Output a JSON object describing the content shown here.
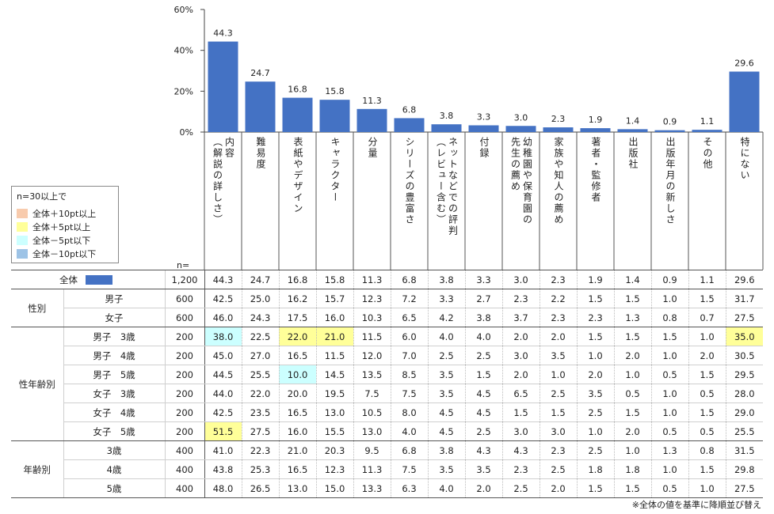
{
  "chart_data": {
    "type": "bar",
    "y_ticks": [
      "60%",
      "40%",
      "20%",
      "0%"
    ],
    "ylim": [
      0,
      60
    ],
    "bar_color": "#4472c4",
    "categories": [
      "内容\n（解説の詳しさ）",
      "難易度",
      "表紙やデザイン",
      "キャラクター",
      "分量",
      "シリーズの豊富さ",
      "ネットなどでの評判\n（レビュー含む）",
      "付録",
      "幼稚園や保育園の\n先生の薦め",
      "家族や知人の薦め",
      "著者・監修者",
      "出版社",
      "出版年月の新しさ",
      "その他",
      "特にない"
    ],
    "values": [
      44.3,
      24.7,
      16.8,
      15.8,
      11.3,
      6.8,
      3.8,
      3.3,
      3.0,
      2.3,
      1.9,
      1.4,
      0.9,
      1.1,
      29.6
    ],
    "value_labels": [
      "44.3",
      "24.7",
      "16.8",
      "15.8",
      "11.3",
      "6.8",
      "3.8",
      "3.3",
      "3.0",
      "2.3",
      "1.9",
      "1.4",
      "0.9",
      "1.1",
      "29.6"
    ]
  },
  "legend": {
    "title": "n=30以上で",
    "items": [
      {
        "label": "全体＋10pt以上",
        "color": "#f8cbad"
      },
      {
        "label": "全体＋5pt以上",
        "color": "#ffff99"
      },
      {
        "label": "全体－5pt以下",
        "color": "#ccffff"
      },
      {
        "label": "全体－10pt以下",
        "color": "#9dc3e6"
      }
    ]
  },
  "n_header": "n=",
  "table": {
    "total": {
      "label": "全体",
      "n": "1,200",
      "values": [
        "44.3",
        "24.7",
        "16.8",
        "15.8",
        "11.3",
        "6.8",
        "3.8",
        "3.3",
        "3.0",
        "2.3",
        "1.9",
        "1.4",
        "0.9",
        "1.1",
        "29.6"
      ]
    },
    "groups": [
      {
        "name": "性別",
        "rows": [
          {
            "label": "男子",
            "n": "600",
            "values": [
              "42.5",
              "25.0",
              "16.2",
              "15.7",
              "12.3",
              "7.2",
              "3.3",
              "2.7",
              "2.3",
              "2.2",
              "1.5",
              "1.5",
              "1.0",
              "1.5",
              "31.7"
            ],
            "hl": {}
          },
          {
            "label": "女子",
            "n": "600",
            "values": [
              "46.0",
              "24.3",
              "17.5",
              "16.0",
              "10.3",
              "6.5",
              "4.2",
              "3.8",
              "3.7",
              "2.3",
              "2.3",
              "1.3",
              "0.8",
              "0.7",
              "27.5"
            ],
            "hl": {}
          }
        ]
      },
      {
        "name": "性年齢別",
        "rows": [
          {
            "label": "男子　3歳",
            "n": "200",
            "values": [
              "38.0",
              "22.5",
              "22.0",
              "21.0",
              "11.5",
              "6.0",
              "4.0",
              "4.0",
              "2.0",
              "2.0",
              "1.5",
              "1.5",
              "1.5",
              "1.0",
              "35.0"
            ],
            "hl": {
              "0": "#ccffff",
              "2": "#ffff99",
              "3": "#ffff99",
              "14": "#ffff99"
            }
          },
          {
            "label": "男子　4歳",
            "n": "200",
            "values": [
              "45.0",
              "27.0",
              "16.5",
              "11.5",
              "12.0",
              "7.0",
              "2.5",
              "2.5",
              "3.0",
              "3.5",
              "1.0",
              "2.0",
              "1.0",
              "2.0",
              "30.5"
            ],
            "hl": {}
          },
          {
            "label": "男子　5歳",
            "n": "200",
            "values": [
              "44.5",
              "25.5",
              "10.0",
              "14.5",
              "13.5",
              "8.5",
              "3.5",
              "1.5",
              "2.0",
              "1.0",
              "2.0",
              "1.0",
              "0.5",
              "1.5",
              "29.5"
            ],
            "hl": {
              "2": "#ccffff"
            }
          },
          {
            "label": "女子　3歳",
            "n": "200",
            "values": [
              "44.0",
              "22.0",
              "20.0",
              "19.5",
              "7.5",
              "7.5",
              "3.5",
              "4.5",
              "6.5",
              "2.5",
              "3.5",
              "0.5",
              "1.0",
              "0.5",
              "28.0"
            ],
            "hl": {}
          },
          {
            "label": "女子　4歳",
            "n": "200",
            "values": [
              "42.5",
              "23.5",
              "16.5",
              "13.0",
              "10.5",
              "8.0",
              "4.5",
              "4.5",
              "1.5",
              "1.5",
              "2.5",
              "1.5",
              "1.0",
              "1.5",
              "29.0"
            ],
            "hl": {}
          },
          {
            "label": "女子　5歳",
            "n": "200",
            "values": [
              "51.5",
              "27.5",
              "16.0",
              "15.5",
              "13.0",
              "4.0",
              "4.5",
              "2.5",
              "3.0",
              "3.0",
              "1.0",
              "2.0",
              "0.5",
              "0.5",
              "25.5"
            ],
            "hl": {
              "0": "#ffff99"
            }
          }
        ]
      },
      {
        "name": "年齢別",
        "rows": [
          {
            "label": "3歳",
            "n": "400",
            "values": [
              "41.0",
              "22.3",
              "21.0",
              "20.3",
              "9.5",
              "6.8",
              "3.8",
              "4.3",
              "4.3",
              "2.3",
              "2.5",
              "1.0",
              "1.3",
              "0.8",
              "31.5"
            ],
            "hl": {}
          },
          {
            "label": "4歳",
            "n": "400",
            "values": [
              "43.8",
              "25.3",
              "16.5",
              "12.3",
              "11.3",
              "7.5",
              "3.5",
              "3.5",
              "2.3",
              "2.5",
              "1.8",
              "1.8",
              "1.0",
              "1.5",
              "29.8"
            ],
            "hl": {}
          },
          {
            "label": "5歳",
            "n": "400",
            "values": [
              "48.0",
              "26.5",
              "13.0",
              "15.0",
              "13.3",
              "6.3",
              "4.0",
              "2.0",
              "2.5",
              "2.0",
              "1.5",
              "1.5",
              "0.5",
              "1.0",
              "27.5"
            ],
            "hl": {}
          }
        ]
      }
    ]
  },
  "footnote": "※全体の値を基準に降順並び替え"
}
